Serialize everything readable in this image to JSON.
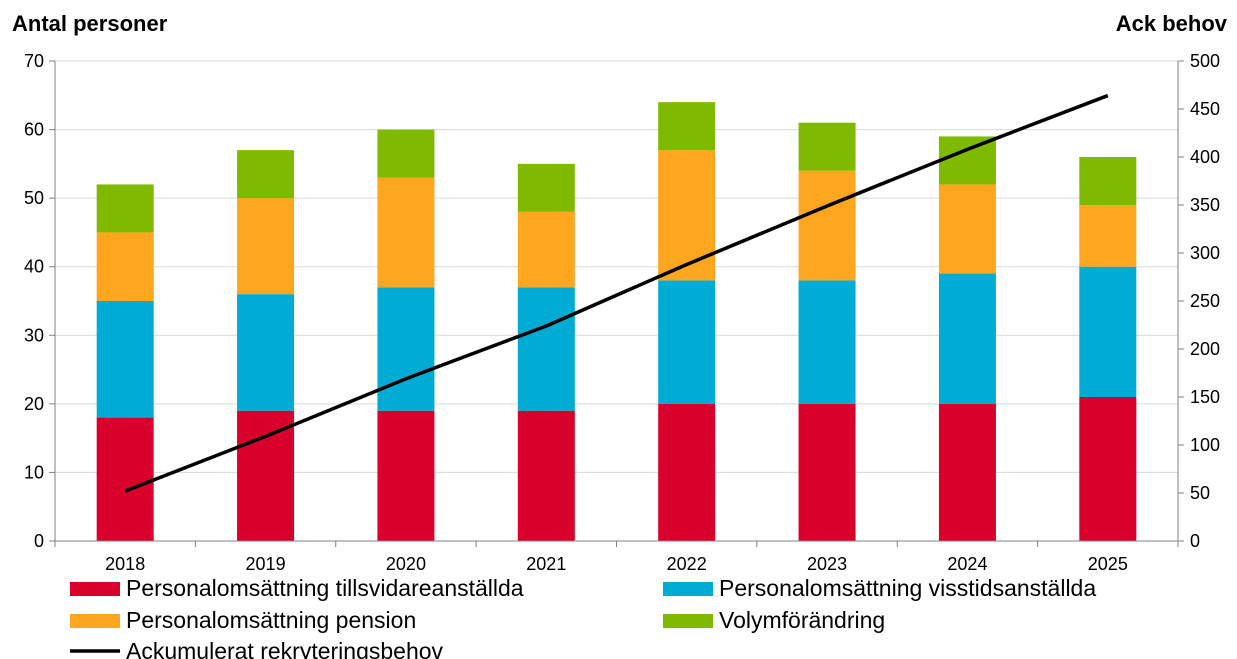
{
  "chart_data": {
    "type": "bar",
    "stacked": true,
    "left_axis_title": "Antal personer",
    "right_axis_title": "Ack behov",
    "categories": [
      "2018",
      "2019",
      "2020",
      "2021",
      "2022",
      "2023",
      "2024",
      "2025"
    ],
    "ylim": [
      0,
      70
    ],
    "y_ticks": [
      "0",
      "10",
      "20",
      "30",
      "40",
      "50",
      "60",
      "70"
    ],
    "y2lim": [
      0,
      500
    ],
    "y2_ticks": [
      "0",
      "50",
      "100",
      "150",
      "200",
      "250",
      "300",
      "350",
      "400",
      "450",
      "500"
    ],
    "grid": true,
    "legend_position": "bottom",
    "series": [
      {
        "name": "Personalomsättning tillsvidareanställda",
        "color": "#d9002b",
        "values": [
          18,
          19,
          19,
          19,
          20,
          20,
          20,
          21
        ]
      },
      {
        "name": "Personalomsättning visstidsanställda",
        "color": "#00acd4",
        "values": [
          17,
          17,
          18,
          18,
          18,
          18,
          19,
          19
        ]
      },
      {
        "name": "Personalomsättning pension",
        "color": "#fea61e",
        "values": [
          10,
          14,
          16,
          11,
          19,
          16,
          13,
          9
        ]
      },
      {
        "name": "Volymförändring",
        "color": "#7fba00",
        "values": [
          7,
          7,
          7,
          7,
          7,
          7,
          7,
          7
        ]
      }
    ],
    "line_series": {
      "name": "Ackumulerat rekryteringsbehov",
      "color": "#000000",
      "axis": "right",
      "values": [
        52,
        109,
        169,
        224,
        288,
        349,
        408,
        464
      ]
    }
  }
}
